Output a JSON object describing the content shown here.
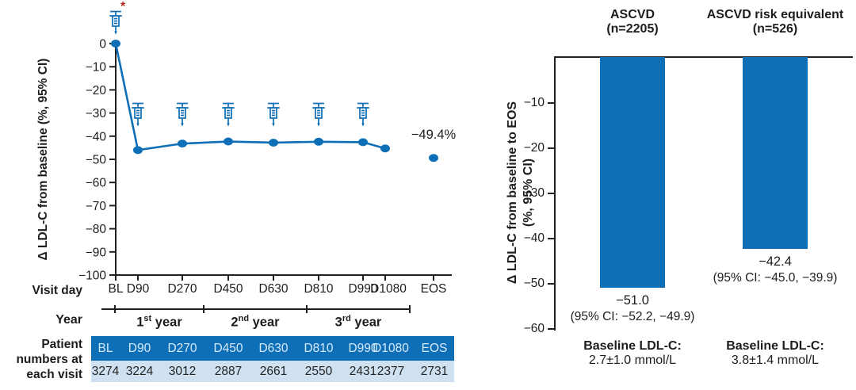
{
  "colors": {
    "primary_blue": "#0e6fb6",
    "table_header_bg": "#0e6fb6",
    "table_row_bg": "#cfe1f1",
    "table_header_text": "#d7eafa",
    "asterisk_red": "#b3251e",
    "axis_color": "#231f20"
  },
  "chart_data": [
    {
      "type": "line",
      "ylabel": "Δ LDL-C from baseline (%, 95% CI)",
      "ylim": [
        -100,
        0
      ],
      "ytick_labels": [
        "0",
        "−10",
        "−20",
        "−30",
        "−40",
        "−50",
        "−60",
        "−70",
        "−80",
        "−90",
        "−100"
      ],
      "ytick_values": [
        0,
        -10,
        -20,
        -30,
        -40,
        -50,
        -60,
        -70,
        -80,
        -90,
        -100
      ],
      "x_categories": [
        "BL",
        "D90",
        "D270",
        "D450",
        "D630",
        "D810",
        "D990",
        "D1080",
        "EOS"
      ],
      "values": [
        0,
        -46.0,
        -43.2,
        -42.3,
        -42.8,
        -42.4,
        -42.6,
        -45.3,
        -49.4
      ],
      "eos_annotation": "−49.4%",
      "asterisk": "*",
      "syringe_at": [
        "BL",
        "D90",
        "D270",
        "D450",
        "D630",
        "D810",
        "D990"
      ],
      "visit_day_row_label": "Visit day",
      "year_row_label": "Year",
      "years": [
        {
          "ordinal": "1",
          "suffix": "st",
          "word": "year"
        },
        {
          "ordinal": "2",
          "suffix": "nd",
          "word": "year"
        },
        {
          "ordinal": "3",
          "suffix": "rd",
          "word": "year"
        }
      ],
      "patient_table": {
        "row_label": "Patient numbers at each visit",
        "columns": [
          "BL",
          "D90",
          "D270",
          "D450",
          "D630",
          "D810",
          "D990",
          "D1080",
          "EOS"
        ],
        "values": [
          "3274",
          "3224",
          "3012",
          "2887",
          "2661",
          "2550",
          "2431",
          "2377",
          "2731"
        ]
      }
    },
    {
      "type": "bar",
      "ylabel_line1": "Δ LDL-C from baseline to EOS",
      "ylabel_line2": "(%, 95% CI)",
      "ylim": [
        -60,
        0
      ],
      "ytick_labels": [
        "−10",
        "−20",
        "−30",
        "−40",
        "−50",
        "−60"
      ],
      "ytick_values": [
        -10,
        -20,
        -30,
        -40,
        -50,
        -60
      ],
      "groups": [
        {
          "title": "ASCVD",
          "n_label": "(n=2205)",
          "value": -51.0,
          "value_label": "−51.0",
          "ci_label": "(95% CI: −52.2, −49.9)",
          "baseline_title": "Baseline LDL-C:",
          "baseline_value": "2.7±1.0 mmol/L"
        },
        {
          "title": "ASCVD risk equivalent",
          "n_label": "(n=526)",
          "value": -42.4,
          "value_label": "−42.4",
          "ci_label": "(95% CI: −45.0, −39.9)",
          "baseline_title": "Baseline LDL-C:",
          "baseline_value": "3.8±1.4 mmol/L"
        }
      ]
    }
  ]
}
